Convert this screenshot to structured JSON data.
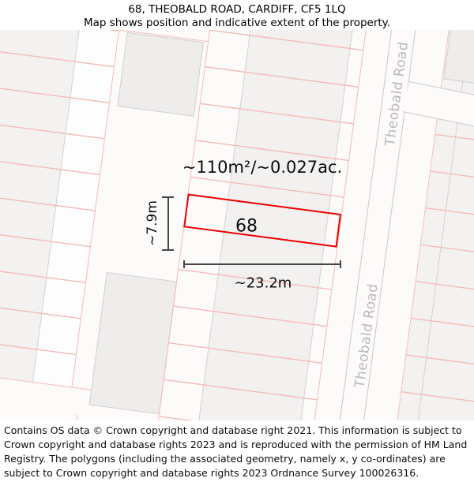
{
  "header": {
    "title": "68, THEOBALD ROAD, CARDIFF, CF5 1LQ",
    "subtitle": "Map shows position and indicative extent of the property."
  },
  "map": {
    "plot_number": "68",
    "area_label": "~110m²/~0.027ac.",
    "width_label": "~23.2m",
    "height_label": "~7.9m",
    "road_label": "Theobald Road",
    "colors": {
      "plot_outline": "#ee0000",
      "parcel_line": "#f5b9b9",
      "building_line": "#c9c7c6",
      "building_fill": "#eeedec",
      "parcel_fill": "#f3f2f1",
      "dimension_line": "#464646",
      "road_label_text": "#b9b7b7",
      "map_background": "#fcfbfa"
    }
  },
  "footer": {
    "attribution": "Contains OS data © Crown copyright and database right 2021. This information is subject to Crown copyright and database rights 2023 and is reproduced with the permission of HM Land Registry. The polygons (including the associated geometry, namely x, y co-ordinates) are subject to Crown copyright and database rights 2023 Ordnance Survey 100026316."
  }
}
